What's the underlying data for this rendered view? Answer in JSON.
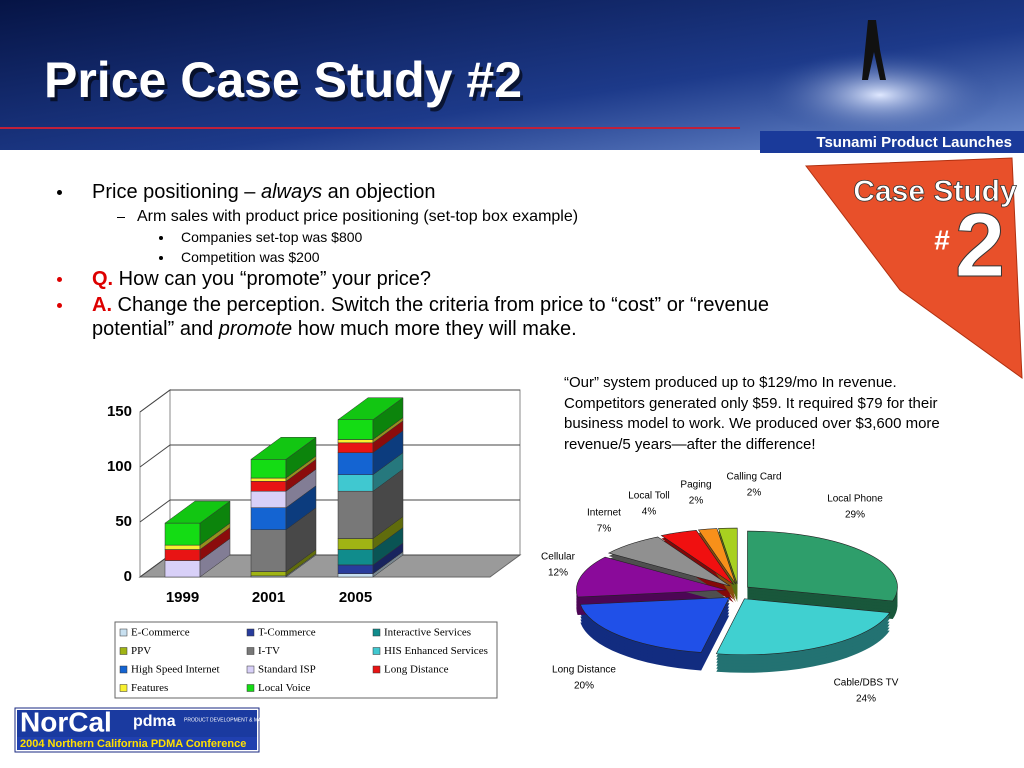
{
  "header": {
    "title": "Price Case Study #2",
    "tagline": "Tsunami Product Launches"
  },
  "badge": {
    "title": "Case Study",
    "hash": "#",
    "number": "2"
  },
  "bullets": [
    {
      "parts": [
        "Price positioning – ",
        "always",
        " an objection"
      ]
    },
    {
      "parts": [
        "Arm sales with product price positioning (set-top box example)"
      ]
    },
    {
      "parts": [
        "Companies set-top was $800"
      ]
    },
    {
      "parts": [
        "Competition was $200"
      ]
    },
    {
      "parts": [
        "Q.",
        " How can you “promote” your price?"
      ]
    },
    {
      "parts": [
        "A.",
        " Change the perception. Switch the criteria from price to “cost” or “revenue potential” and ",
        "promote",
        " how much more they will make."
      ]
    }
  ],
  "note": "“Our” system produced up to $129/mo In revenue. Competitors generated only $59. It required $79 for their business model to work. We produced over $3,600 more revenue/5 years—after the difference!",
  "footer": {
    "logo": "NorCal",
    "org": "pdma",
    "org_full": "PRODUCT DEVELOPMENT & MANAGEMENT ASSOCIATION",
    "conference": "2004 Northern California PDMA Conference"
  },
  "chart_data": [
    {
      "type": "stacked_bar",
      "categories": [
        "1999",
        "2001",
        "2005"
      ],
      "ylim": [
        0,
        150
      ],
      "yticks": [
        0,
        50,
        100,
        150
      ],
      "grid": true,
      "series": [
        {
          "name": "E-Commerce",
          "color": "#c8e0f0",
          "values": [
            0,
            1,
            3
          ]
        },
        {
          "name": "T-Commerce",
          "color": "#283c9c",
          "values": [
            0,
            0,
            8
          ]
        },
        {
          "name": "Interactive Services",
          "color": "#108c8c",
          "values": [
            0,
            0,
            14
          ]
        },
        {
          "name": "PPV",
          "color": "#a0b414",
          "values": [
            0,
            4,
            10
          ]
        },
        {
          "name": "I-TV",
          "color": "#787878",
          "values": [
            0,
            38,
            43
          ]
        },
        {
          "name": "HIS Enhanced Services",
          "color": "#40c8d0",
          "values": [
            0,
            0,
            15
          ]
        },
        {
          "name": "High Speed Internet",
          "color": "#1464d2",
          "values": [
            0,
            20,
            20
          ]
        },
        {
          "name": "Standard ISP",
          "color": "#d8d0f8",
          "values": [
            15,
            15,
            0
          ]
        },
        {
          "name": "Long Distance",
          "color": "#e81414",
          "values": [
            10,
            9,
            9
          ]
        },
        {
          "name": "Features",
          "color": "#f8f030",
          "values": [
            4,
            3,
            3
          ]
        },
        {
          "name": "Local Voice",
          "color": "#14dc14",
          "values": [
            20,
            17,
            18
          ]
        }
      ]
    },
    {
      "type": "pie",
      "categories": [
        "Local Phone",
        "Cable/DBS TV",
        "Long Distance",
        "Cellular",
        "Internet",
        "Local Toll",
        "Paging",
        "Calling Card"
      ],
      "values": [
        29,
        24,
        20,
        12,
        7,
        4,
        2,
        2
      ],
      "value_labels": [
        "29%",
        "24%",
        "20%",
        "12%",
        "7%",
        "4%",
        "2%",
        "2%"
      ],
      "colors": [
        "#2e9e6b",
        "#40d0d0",
        "#2050e8",
        "#8a0a9a",
        "#909090",
        "#f01010",
        "#f8901a",
        "#a8d020"
      ]
    }
  ]
}
